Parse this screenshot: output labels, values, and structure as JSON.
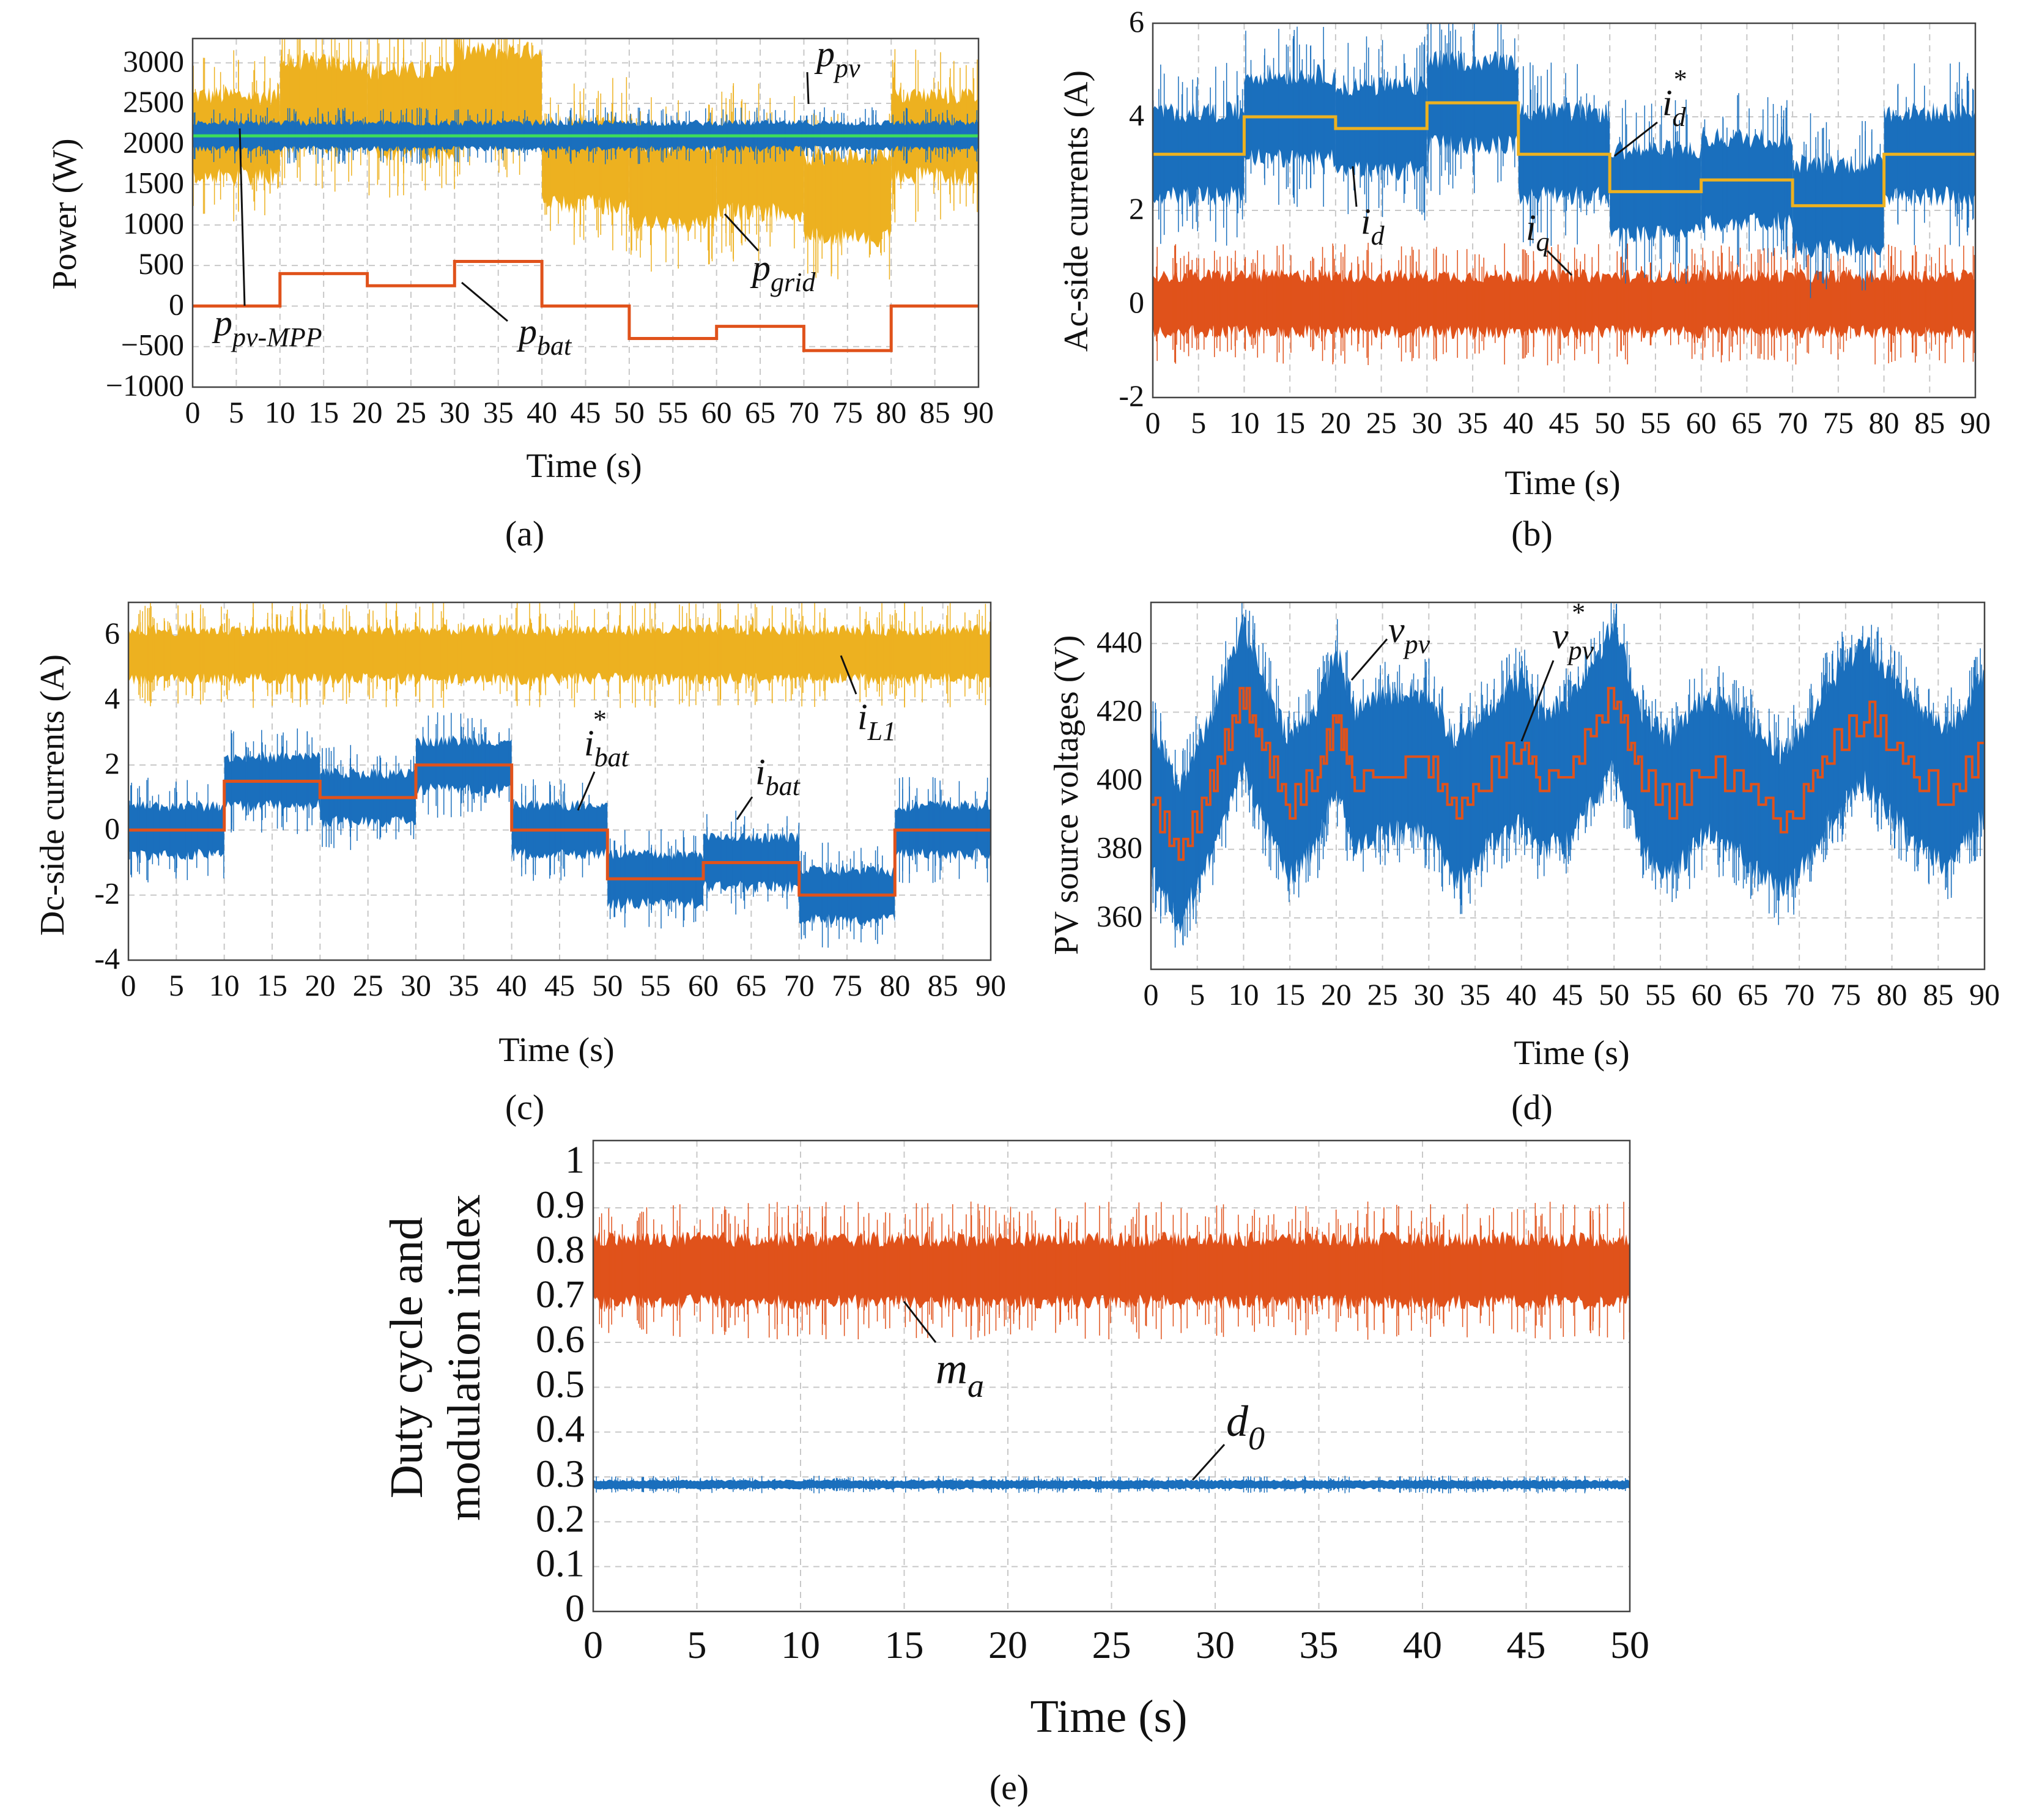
{
  "colors": {
    "blue": "#1a6fbd",
    "orange": "#e0521b",
    "yellow": "#edb120",
    "green": "#3ddc5c",
    "grid": "#c8c8c8"
  },
  "chart_data": [
    {
      "id": "a",
      "panel_label": "(a)",
      "type": "line",
      "xlabel": "Time (s)",
      "ylabel": "Power (W)",
      "xlim": [
        0,
        90
      ],
      "ylim": [
        -1000,
        3300
      ],
      "xticks": [
        0,
        5,
        10,
        15,
        20,
        25,
        30,
        35,
        40,
        45,
        50,
        55,
        60,
        65,
        70,
        75,
        80,
        85,
        90
      ],
      "yticks": [
        -1000,
        -500,
        0,
        500,
        1000,
        1500,
        2000,
        2500,
        3000
      ],
      "series": [
        {
          "name": "p_grid",
          "color": "#edb120",
          "kind": "band",
          "steps": [
            [
              0,
              10,
              2100,
              1000
            ],
            [
              10,
              20,
              2500,
              1000
            ],
            [
              20,
              30,
              2400,
              1000
            ],
            [
              30,
              40,
              2650,
              1000
            ],
            [
              40,
              50,
              1750,
              1000
            ],
            [
              50,
              60,
              1500,
              1000
            ],
            [
              60,
              70,
              1650,
              1000
            ],
            [
              70,
              80,
              1350,
              1000
            ],
            [
              80,
              90,
              2100,
              1000
            ]
          ]
        },
        {
          "name": "p_pv",
          "color": "#1a6fbd",
          "kind": "band",
          "steps": [
            [
              0,
              90,
              2100,
              320
            ]
          ]
        },
        {
          "name": "p_pv-MPP",
          "color": "#3ddc5c",
          "kind": "line",
          "steps": [
            [
              0,
              90,
              2100
            ]
          ]
        },
        {
          "name": "p_bat",
          "color": "#e0521b",
          "kind": "line",
          "steps": [
            [
              0,
              10,
              0
            ],
            [
              10,
              20,
              400
            ],
            [
              20,
              30,
              250
            ],
            [
              30,
              40,
              550
            ],
            [
              40,
              50,
              0
            ],
            [
              50,
              60,
              -400
            ],
            [
              60,
              70,
              -250
            ],
            [
              70,
              80,
              -550
            ],
            [
              80,
              90,
              0
            ]
          ]
        }
      ],
      "annotations": [
        {
          "main": "p",
          "sub": "pv"
        },
        {
          "main": "p",
          "sub": "grid"
        },
        {
          "main": "p",
          "sub": "pv-MPP"
        },
        {
          "main": "p",
          "sub": "bat"
        }
      ]
    },
    {
      "id": "b",
      "panel_label": "(b)",
      "type": "line",
      "xlabel": "Time (s)",
      "ylabel": "Ac-side currents (A)",
      "xlim": [
        0,
        90
      ],
      "ylim": [
        -2,
        6
      ],
      "xticks": [
        0,
        5,
        10,
        15,
        20,
        25,
        30,
        35,
        40,
        45,
        50,
        55,
        60,
        65,
        70,
        75,
        80,
        85,
        90
      ],
      "yticks": [
        -2,
        0,
        2,
        4,
        6
      ],
      "series": [
        {
          "name": "i_q",
          "color": "#e0521b",
          "kind": "band",
          "steps": [
            [
              0,
              90,
              0,
              1.2
            ]
          ]
        },
        {
          "name": "i_d",
          "color": "#1a6fbd",
          "kind": "band",
          "steps": [
            [
              0,
              10,
              3.2,
              1.8
            ],
            [
              10,
              20,
              4.0,
              1.8
            ],
            [
              20,
              30,
              3.75,
              1.8
            ],
            [
              30,
              40,
              4.3,
              1.8
            ],
            [
              40,
              50,
              3.2,
              1.8
            ],
            [
              50,
              60,
              2.4,
              1.8
            ],
            [
              60,
              70,
              2.65,
              1.8
            ],
            [
              70,
              80,
              2.1,
              1.8
            ],
            [
              80,
              90,
              3.2,
              1.8
            ]
          ]
        },
        {
          "name": "i_d*",
          "color": "#edb120",
          "kind": "line",
          "steps": [
            [
              0,
              10,
              3.2
            ],
            [
              10,
              20,
              4.0
            ],
            [
              20,
              30,
              3.75
            ],
            [
              30,
              40,
              4.3
            ],
            [
              40,
              50,
              3.2
            ],
            [
              50,
              60,
              2.4
            ],
            [
              60,
              70,
              2.65
            ],
            [
              70,
              80,
              2.1
            ],
            [
              80,
              90,
              3.2
            ]
          ]
        }
      ],
      "annotations": [
        {
          "main": "i",
          "sub": "d",
          "sup": "*"
        },
        {
          "main": "i",
          "sub": "d"
        },
        {
          "main": "i",
          "sub": "q"
        }
      ]
    },
    {
      "id": "c",
      "panel_label": "(c)",
      "type": "line",
      "xlabel": "Time (s)",
      "ylabel": "Dc-side currents (A)",
      "xlim": [
        0,
        90
      ],
      "ylim": [
        -4,
        7
      ],
      "xticks": [
        0,
        5,
        10,
        15,
        20,
        25,
        30,
        35,
        40,
        45,
        50,
        55,
        60,
        65,
        70,
        75,
        80,
        85,
        90
      ],
      "yticks": [
        -4,
        -2,
        0,
        2,
        4,
        6
      ],
      "series": [
        {
          "name": "i_L1",
          "color": "#edb120",
          "kind": "band",
          "steps": [
            [
              0,
              90,
              5.4,
              1.5
            ]
          ]
        },
        {
          "name": "i_bat",
          "color": "#1a6fbd",
          "kind": "band",
          "steps": [
            [
              0,
              10,
              0,
              1.5
            ],
            [
              10,
              20,
              1.5,
              1.5
            ],
            [
              20,
              30,
              1.0,
              1.5
            ],
            [
              30,
              40,
              2.0,
              1.5
            ],
            [
              40,
              50,
              0,
              1.5
            ],
            [
              50,
              60,
              -1.5,
              1.5
            ],
            [
              60,
              70,
              -1.0,
              1.5
            ],
            [
              70,
              80,
              -2.0,
              1.5
            ],
            [
              80,
              90,
              0,
              1.5
            ]
          ]
        },
        {
          "name": "i_bat*",
          "color": "#e0521b",
          "kind": "line",
          "steps": [
            [
              0,
              10,
              0
            ],
            [
              10,
              20,
              1.5
            ],
            [
              20,
              30,
              1.0
            ],
            [
              30,
              40,
              2.0
            ],
            [
              40,
              50,
              0
            ],
            [
              50,
              60,
              -1.5
            ],
            [
              60,
              70,
              -1.0
            ],
            [
              70,
              80,
              -2.0
            ],
            [
              80,
              90,
              0
            ]
          ]
        }
      ],
      "annotations": [
        {
          "main": "i",
          "sub": "L1"
        },
        {
          "main": "i",
          "sub": "bat",
          "sup": "*"
        },
        {
          "main": "i",
          "sub": "bat"
        }
      ]
    },
    {
      "id": "d",
      "panel_label": "(d)",
      "type": "line",
      "xlabel": "Time (s)",
      "ylabel": "PV source voltages (V)",
      "xlim": [
        0,
        90
      ],
      "ylim": [
        345,
        452
      ],
      "xticks": [
        0,
        5,
        10,
        15,
        20,
        25,
        30,
        35,
        40,
        45,
        50,
        55,
        60,
        65,
        70,
        75,
        80,
        85,
        90
      ],
      "yticks": [
        360,
        380,
        400,
        420,
        440
      ],
      "series": [
        {
          "name": "v_pv",
          "color": "#1a6fbd",
          "kind": "band",
          "half_width": 22,
          "points": [
            [
              0,
              395
            ],
            [
              3,
              378
            ],
            [
              6,
              395
            ],
            [
              10,
              425
            ],
            [
              12,
              410
            ],
            [
              15,
              392
            ],
            [
              18,
              402
            ],
            [
              20,
              418
            ],
            [
              22,
              400
            ],
            [
              25,
              405
            ],
            [
              30,
              405
            ],
            [
              33,
              390
            ],
            [
              36,
              400
            ],
            [
              40,
              410
            ],
            [
              42,
              400
            ],
            [
              45,
              403
            ],
            [
              50,
              425
            ],
            [
              53,
              400
            ],
            [
              56,
              392
            ],
            [
              60,
              405
            ],
            [
              64,
              398
            ],
            [
              68,
              388
            ],
            [
              70,
              393
            ],
            [
              73,
              408
            ],
            [
              77,
              420
            ],
            [
              80,
              410
            ],
            [
              83,
              400
            ],
            [
              86,
              395
            ],
            [
              90,
              410
            ]
          ]
        },
        {
          "name": "v_pv*",
          "color": "#e0521b",
          "kind": "stair",
          "points": [
            [
              0,
              395
            ],
            [
              3,
              378
            ],
            [
              6,
              395
            ],
            [
              10,
              425
            ],
            [
              12,
              410
            ],
            [
              15,
              392
            ],
            [
              18,
              402
            ],
            [
              20,
              418
            ],
            [
              22,
              400
            ],
            [
              25,
              405
            ],
            [
              30,
              405
            ],
            [
              33,
              390
            ],
            [
              36,
              400
            ],
            [
              40,
              410
            ],
            [
              42,
              400
            ],
            [
              45,
              403
            ],
            [
              50,
              425
            ],
            [
              53,
              400
            ],
            [
              56,
              392
            ],
            [
              60,
              405
            ],
            [
              64,
              398
            ],
            [
              68,
              388
            ],
            [
              70,
              393
            ],
            [
              73,
              408
            ],
            [
              77,
              420
            ],
            [
              80,
              410
            ],
            [
              83,
              400
            ],
            [
              86,
              395
            ],
            [
              90,
              410
            ]
          ]
        }
      ],
      "annotations": [
        {
          "main": "v",
          "sub": "pv"
        },
        {
          "main": "v",
          "sub": "pv",
          "sup": "*"
        }
      ]
    },
    {
      "id": "e",
      "panel_label": "(e)",
      "type": "line",
      "xlabel": "Time (s)",
      "ylabel": [
        "Duty cycle and",
        "modulation index"
      ],
      "xlim": [
        0,
        50
      ],
      "ylim": [
        0,
        1.05
      ],
      "xticks": [
        0,
        5,
        10,
        15,
        20,
        25,
        30,
        35,
        40,
        45,
        50
      ],
      "yticks": [
        0,
        0.1,
        0.2,
        0.3,
        0.4,
        0.5,
        0.6,
        0.7,
        0.8,
        0.9,
        1
      ],
      "series": [
        {
          "name": "m_a",
          "color": "#e0521b",
          "kind": "band",
          "steps": [
            [
              0,
              50,
              0.76,
              0.14
            ]
          ]
        },
        {
          "name": "d_0",
          "color": "#1a6fbd",
          "kind": "band",
          "steps": [
            [
              0,
              50,
              0.283,
              0.018
            ]
          ]
        }
      ],
      "annotations": [
        {
          "main": "m",
          "sub": "a"
        },
        {
          "main": "d",
          "sub": "0"
        }
      ]
    }
  ]
}
